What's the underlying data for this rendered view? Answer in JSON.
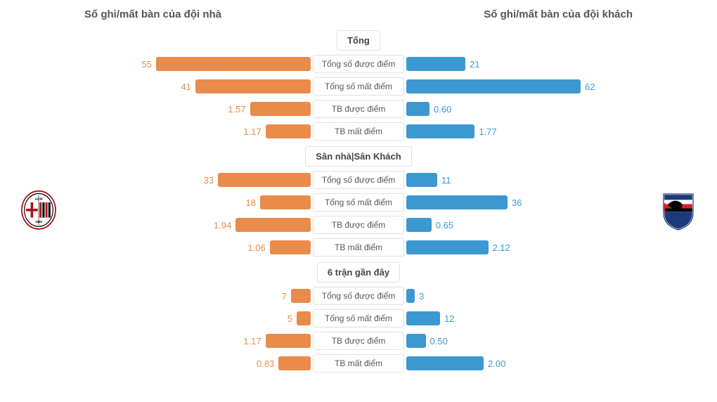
{
  "header": {
    "left_title": "Số ghi/mất bàn của đội nhà",
    "right_title": "Số ghi/mất bàn của đội khách"
  },
  "colors": {
    "home_bar": "#e98b4a",
    "home_text": "#e98b4a",
    "away_bar": "#3c98d1",
    "away_text": "#3c98d1",
    "border": "#e0e0e0",
    "section_text": "#444444"
  },
  "max_scale": 260,
  "max_value": 65,
  "sections": [
    {
      "title": "Tổng",
      "rows": [
        {
          "label": "Tổng số được điểm",
          "home": 55,
          "away": 21,
          "home_disp": "55",
          "away_disp": "21"
        },
        {
          "label": "Tổng số mất điểm",
          "home": 41,
          "away": 62,
          "home_disp": "41",
          "away_disp": "62"
        },
        {
          "label": "TB được điểm",
          "home": 1.57,
          "away": 0.6,
          "home_disp": "1.57",
          "away_disp": "0.60",
          "scale": 55
        },
        {
          "label": "TB mất điểm",
          "home": 1.17,
          "away": 1.77,
          "home_disp": "1.17",
          "away_disp": "1.77",
          "scale": 55
        }
      ]
    },
    {
      "title": "Sân nhà|Sân Khách",
      "rows": [
        {
          "label": "Tổng số được điểm",
          "home": 33,
          "away": 11,
          "home_disp": "33",
          "away_disp": "11"
        },
        {
          "label": "Tổng số mất điểm",
          "home": 18,
          "away": 36,
          "home_disp": "18",
          "away_disp": "36"
        },
        {
          "label": "TB được điểm",
          "home": 1.94,
          "away": 0.65,
          "home_disp": "1.94",
          "away_disp": "0.65",
          "scale": 55
        },
        {
          "label": "TB mất điểm",
          "home": 1.06,
          "away": 2.12,
          "home_disp": "1.06",
          "away_disp": "2.12",
          "scale": 55
        }
      ]
    },
    {
      "title": "6 trận gần đây",
      "rows": [
        {
          "label": "Tổng số được điểm",
          "home": 7,
          "away": 3,
          "home_disp": "7",
          "away_disp": "3"
        },
        {
          "label": "Tổng số mất điểm",
          "home": 5,
          "away": 12,
          "home_disp": "5",
          "away_disp": "12"
        },
        {
          "label": "TB được điểm",
          "home": 1.17,
          "away": 0.5,
          "home_disp": "1.17",
          "away_disp": "0.50",
          "scale": 55
        },
        {
          "label": "TB mất điểm",
          "home": 0.83,
          "away": 2.0,
          "home_disp": "0.83",
          "away_disp": "2.00",
          "scale": 55
        }
      ]
    }
  ],
  "home_team": {
    "name": "AC Milan"
  },
  "away_team": {
    "name": "Sampdoria"
  }
}
